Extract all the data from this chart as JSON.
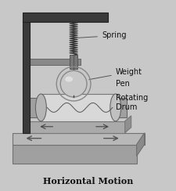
{
  "background_color": "#c8c8c8",
  "figure_bg": "#c8c8c8",
  "labels": {
    "spring": "Spring",
    "weight": "Weight",
    "pen": "Pen",
    "rotating_drum": "Rotating\nDrum",
    "horizontal_motion": "Horizontal Motion"
  },
  "label_fontsize": 7,
  "hm_fontsize": 8,
  "figsize": [
    2.26,
    2.44
  ],
  "dpi": 100,
  "frame_color": "#2a2a2a",
  "base_top_color": "#b5b5b5",
  "base_front_color": "#909090",
  "base_side_color": "#a0a0a0",
  "drum_body_color": "#d5d5d5",
  "drum_cap_color": "#b0b0b0",
  "sphere_color": "#c5c5c5",
  "spring_color": "#333333",
  "arrow_color": "#444444",
  "text_color": "#111111",
  "post_color": "#3a3a3a",
  "arm_color": "#888888"
}
